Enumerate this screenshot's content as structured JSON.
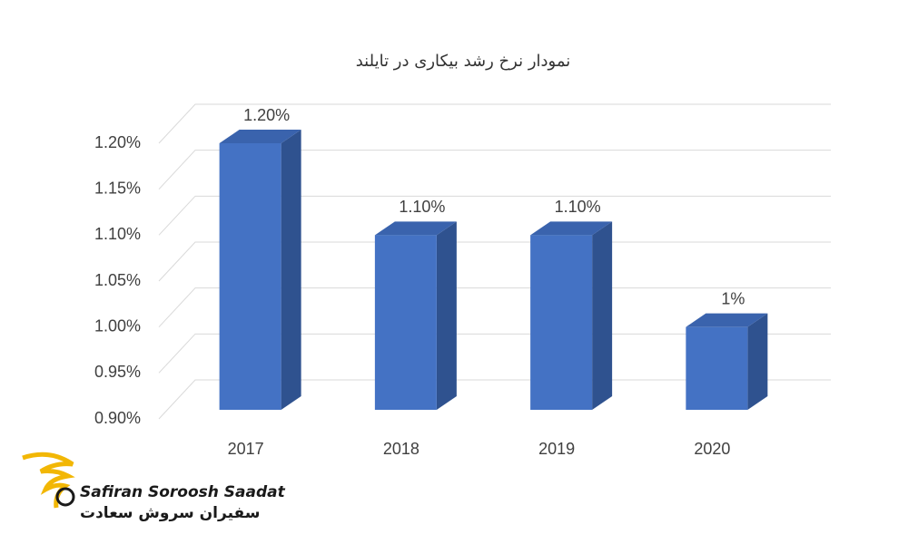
{
  "chart_data": {
    "type": "bar3d",
    "title": "نمودار نرخ رشد بیکاری در تایلند",
    "categories": [
      "2017",
      "2018",
      "2019",
      "2020"
    ],
    "values": [
      1.2,
      1.1,
      1.1,
      1
    ],
    "value_labels": [
      "1.20%",
      "1.10%",
      "1.10%",
      "1%"
    ],
    "color": "#4472c4",
    "ylim": [
      0.9,
      1.2
    ],
    "yticks": [
      {
        "value": 0.9,
        "label": "0.90%"
      },
      {
        "value": 0.95,
        "label": "0.95%"
      },
      {
        "value": 1.0,
        "label": "1.00%"
      },
      {
        "value": 1.05,
        "label": "1.05%"
      },
      {
        "value": 1.1,
        "label": "1.10%"
      },
      {
        "value": 1.15,
        "label": "1.15%"
      },
      {
        "value": 1.2,
        "label": "1.20%"
      }
    ],
    "grid": true
  },
  "logo": {
    "name_en": "Safiran Soroosh Saadat",
    "name_fa": "سفیران سروش سعادت"
  }
}
